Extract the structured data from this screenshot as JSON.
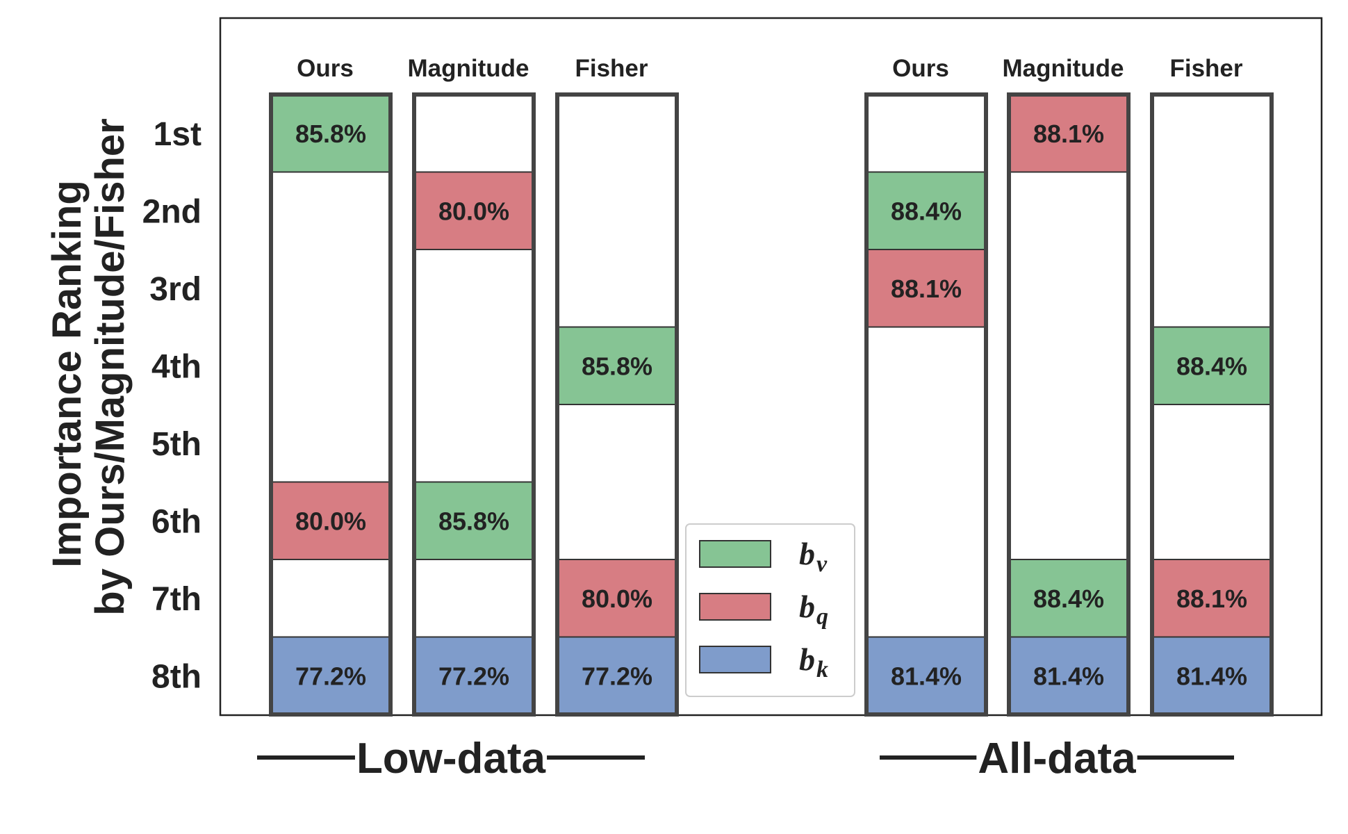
{
  "chart_data": {
    "type": "table",
    "ylabel_line1": "Importance Ranking",
    "ylabel_line2": "by Ours/Magnitude/Fisher",
    "rank_labels": [
      "1st",
      "2nd",
      "3rd",
      "4th",
      "5th",
      "6th",
      "7th",
      "8th"
    ],
    "legend": [
      {
        "key": "bv",
        "symbol": "b",
        "sub": "v",
        "color": "#86C494"
      },
      {
        "key": "bq",
        "symbol": "b",
        "sub": "q",
        "color": "#D77D83"
      },
      {
        "key": "bk",
        "symbol": "b",
        "sub": "k",
        "color": "#7F9CCB"
      }
    ],
    "groups": [
      {
        "label": "Low-data",
        "columns": [
          {
            "name": "Ours",
            "cells": [
              {
                "rank": 1,
                "key": "bv",
                "value": "85.8%"
              },
              {
                "rank": 6,
                "key": "bq",
                "value": "80.0%"
              },
              {
                "rank": 8,
                "key": "bk",
                "value": "77.2%"
              }
            ]
          },
          {
            "name": "Magnitude",
            "cells": [
              {
                "rank": 2,
                "key": "bq",
                "value": "80.0%"
              },
              {
                "rank": 6,
                "key": "bv",
                "value": "85.8%"
              },
              {
                "rank": 8,
                "key": "bk",
                "value": "77.2%"
              }
            ]
          },
          {
            "name": "Fisher",
            "cells": [
              {
                "rank": 4,
                "key": "bv",
                "value": "85.8%"
              },
              {
                "rank": 7,
                "key": "bq",
                "value": "80.0%"
              },
              {
                "rank": 8,
                "key": "bk",
                "value": "77.2%"
              }
            ]
          }
        ]
      },
      {
        "label": "All-data",
        "columns": [
          {
            "name": "Ours",
            "cells": [
              {
                "rank": 2,
                "key": "bv",
                "value": "88.4%"
              },
              {
                "rank": 3,
                "key": "bq",
                "value": "88.1%"
              },
              {
                "rank": 8,
                "key": "bk",
                "value": "81.4%"
              }
            ]
          },
          {
            "name": "Magnitude",
            "cells": [
              {
                "rank": 1,
                "key": "bq",
                "value": "88.1%"
              },
              {
                "rank": 7,
                "key": "bv",
                "value": "88.4%"
              },
              {
                "rank": 8,
                "key": "bk",
                "value": "81.4%"
              }
            ]
          },
          {
            "name": "Fisher",
            "cells": [
              {
                "rank": 4,
                "key": "bv",
                "value": "88.4%"
              },
              {
                "rank": 7,
                "key": "bq",
                "value": "88.1%"
              },
              {
                "rank": 8,
                "key": "bk",
                "value": "81.4%"
              }
            ]
          }
        ]
      }
    ]
  }
}
